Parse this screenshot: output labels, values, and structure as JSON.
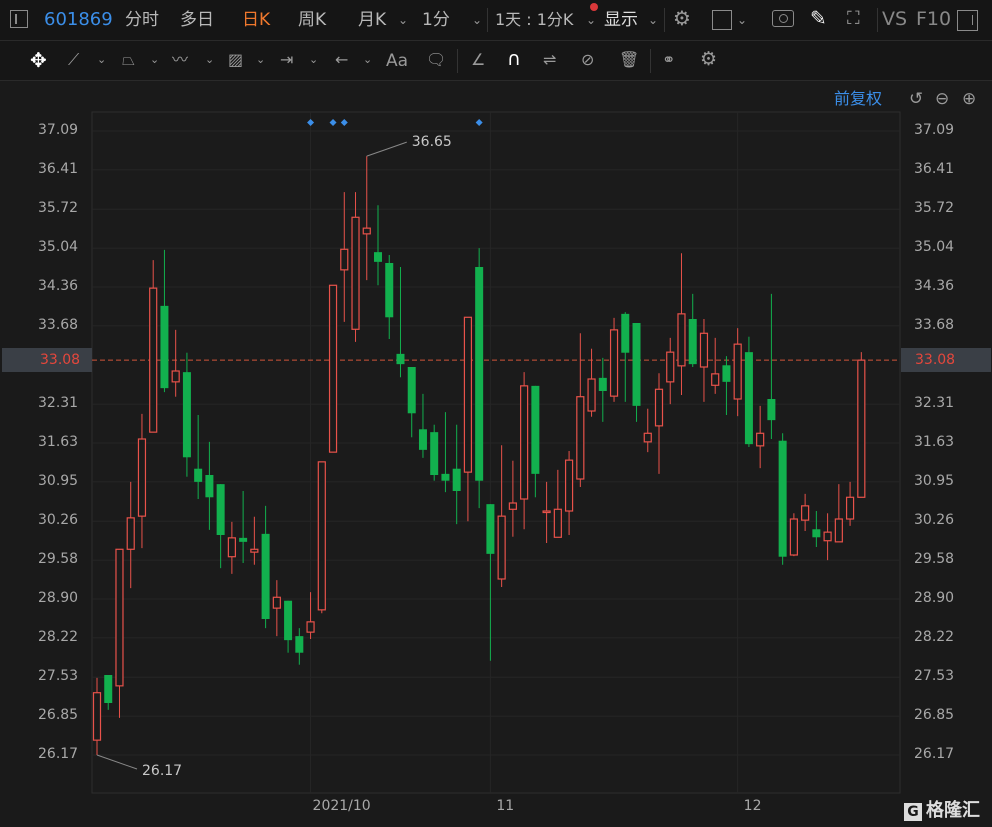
{
  "header": {
    "panel_icon": "sidebar-toggle-icon",
    "code": "601869",
    "tabs": [
      {
        "label": "分时",
        "active": false
      },
      {
        "label": "多日",
        "active": false
      },
      {
        "label": "日K",
        "active": true
      },
      {
        "label": "周K",
        "active": false
      },
      {
        "label": "月K",
        "active": false
      },
      {
        "label": "1分",
        "active": false
      }
    ],
    "period_select": "1天 : 1分K",
    "display_select": "显示",
    "vs_label": "VS",
    "f10_label": "F10",
    "active_color": "#f0782d",
    "code_color": "#3b8ee8"
  },
  "toolbar": {
    "tools": [
      "move-icon",
      "line-tool-icon",
      "polygon-tool-icon",
      "wave-tool-icon",
      "fib-tool-icon",
      "range-tool-icon",
      "arrow-tool-icon",
      "text-tool-icon",
      "comment-tool-icon",
      "angle-tool-icon",
      "magnet-icon",
      "lock-drawing-icon",
      "hide-drawing-icon",
      "trash-icon",
      "overlay-icon",
      "settings-icon"
    ],
    "text_tool_label": "Aa"
  },
  "subheader": {
    "adjust_label": "前复权"
  },
  "watermark": "格隆汇",
  "chart_data": {
    "type": "candlestick",
    "yticks": [
      "37.09",
      "36.41",
      "35.72",
      "35.04",
      "34.36",
      "33.68",
      "32.31",
      "31.63",
      "30.95",
      "30.26",
      "29.58",
      "28.90",
      "28.22",
      "27.53",
      "26.85",
      "26.17"
    ],
    "ylim": [
      26.17,
      37.09
    ],
    "xtick_labels": [
      {
        "label": "2021/10",
        "index": 19
      },
      {
        "label": "11",
        "index": 35
      },
      {
        "label": "12",
        "index": 57
      }
    ],
    "current_price": "33.08",
    "high_annotation": {
      "label": "36.65",
      "index": 24
    },
    "low_annotation": {
      "label": "26.17",
      "index": 0
    },
    "event_marker_indices": [
      19,
      21,
      22,
      34
    ],
    "up_color": "#e8524a",
    "down_color": "#12b04e",
    "grid": true,
    "ohlc": [
      [
        26.43,
        27.52,
        26.17,
        27.26
      ],
      [
        27.57,
        27.57,
        26.96,
        27.08
      ],
      [
        27.38,
        29.77,
        26.82,
        29.77
      ],
      [
        29.77,
        30.95,
        29.09,
        30.32
      ],
      [
        30.35,
        32.14,
        29.79,
        31.7
      ],
      [
        31.82,
        34.83,
        31.82,
        34.34
      ],
      [
        34.03,
        35.01,
        32.52,
        32.59
      ],
      [
        32.7,
        33.61,
        32.44,
        32.89
      ],
      [
        32.87,
        33.21,
        31.04,
        31.38
      ],
      [
        31.18,
        32.12,
        30.65,
        30.95
      ],
      [
        31.07,
        31.65,
        30.11,
        30.68
      ],
      [
        30.91,
        30.91,
        29.44,
        30.02
      ],
      [
        29.64,
        30.25,
        29.34,
        29.97
      ],
      [
        29.97,
        30.79,
        29.53,
        29.9
      ],
      [
        29.72,
        30.34,
        29.5,
        29.77
      ],
      [
        30.04,
        30.53,
        28.39,
        28.55
      ],
      [
        28.74,
        29.23,
        28.25,
        28.93
      ],
      [
        28.87,
        28.87,
        27.96,
        28.18
      ],
      [
        28.25,
        28.39,
        27.75,
        27.96
      ],
      [
        28.32,
        29.02,
        28.2,
        28.5
      ],
      [
        28.71,
        31.3,
        28.65,
        31.3
      ],
      [
        31.47,
        34.39,
        31.47,
        34.39
      ],
      [
        34.66,
        36.02,
        33.75,
        35.02
      ],
      [
        33.62,
        36.02,
        33.4,
        35.58
      ],
      [
        35.29,
        36.65,
        34.48,
        35.39
      ],
      [
        34.97,
        35.79,
        34.39,
        34.8
      ],
      [
        34.78,
        34.92,
        33.45,
        33.83
      ],
      [
        33.19,
        34.71,
        32.78,
        33.01
      ],
      [
        32.96,
        32.96,
        31.73,
        32.15
      ],
      [
        31.87,
        32.49,
        31.37,
        31.51
      ],
      [
        31.82,
        31.95,
        30.97,
        31.07
      ],
      [
        31.09,
        32.17,
        30.77,
        30.97
      ],
      [
        31.18,
        31.95,
        30.21,
        30.79
      ],
      [
        31.12,
        33.83,
        30.26,
        33.83
      ],
      [
        34.71,
        35.04,
        30.49,
        30.97
      ],
      [
        30.56,
        30.56,
        27.82,
        29.69
      ],
      [
        29.25,
        31.59,
        29.11,
        30.35
      ],
      [
        30.47,
        31.32,
        29.99,
        30.58
      ],
      [
        30.65,
        32.87,
        30.12,
        32.63
      ],
      [
        32.63,
        32.63,
        30.68,
        31.09
      ],
      [
        30.44,
        30.95,
        29.88,
        30.44
      ],
      [
        29.98,
        31.16,
        29.98,
        30.47
      ],
      [
        30.44,
        31.49,
        30.02,
        31.33
      ],
      [
        31.0,
        33.55,
        30.86,
        32.44
      ],
      [
        32.19,
        33.28,
        32.09,
        32.75
      ],
      [
        32.77,
        33.12,
        32.0,
        32.54
      ],
      [
        32.45,
        33.82,
        32.35,
        33.61
      ],
      [
        33.89,
        33.92,
        32.35,
        33.21
      ],
      [
        33.73,
        33.73,
        32.0,
        32.28
      ],
      [
        31.65,
        32.23,
        31.47,
        31.8
      ],
      [
        31.93,
        32.85,
        31.09,
        32.57
      ],
      [
        32.7,
        33.47,
        32.31,
        33.22
      ],
      [
        32.98,
        34.95,
        32.47,
        33.89
      ],
      [
        33.8,
        34.24,
        32.96,
        33.01
      ],
      [
        32.96,
        33.8,
        32.35,
        33.55
      ],
      [
        32.64,
        33.47,
        32.49,
        32.84
      ],
      [
        32.99,
        33.15,
        32.12,
        32.7
      ],
      [
        32.4,
        33.64,
        32.1,
        33.36
      ],
      [
        33.22,
        33.49,
        31.56,
        31.61
      ],
      [
        31.58,
        32.28,
        31.19,
        31.8
      ],
      [
        32.4,
        34.24,
        31.7,
        32.03
      ],
      [
        31.67,
        31.8,
        29.5,
        29.64
      ],
      [
        29.67,
        30.4,
        29.65,
        30.3
      ],
      [
        30.28,
        30.74,
        30.09,
        30.53
      ],
      [
        30.12,
        30.44,
        29.81,
        29.98
      ],
      [
        29.92,
        30.4,
        29.58,
        30.07
      ],
      [
        29.9,
        30.91,
        29.9,
        30.3
      ],
      [
        30.3,
        30.95,
        30.18,
        30.68
      ],
      [
        30.68,
        33.22,
        30.68,
        33.08
      ]
    ]
  }
}
